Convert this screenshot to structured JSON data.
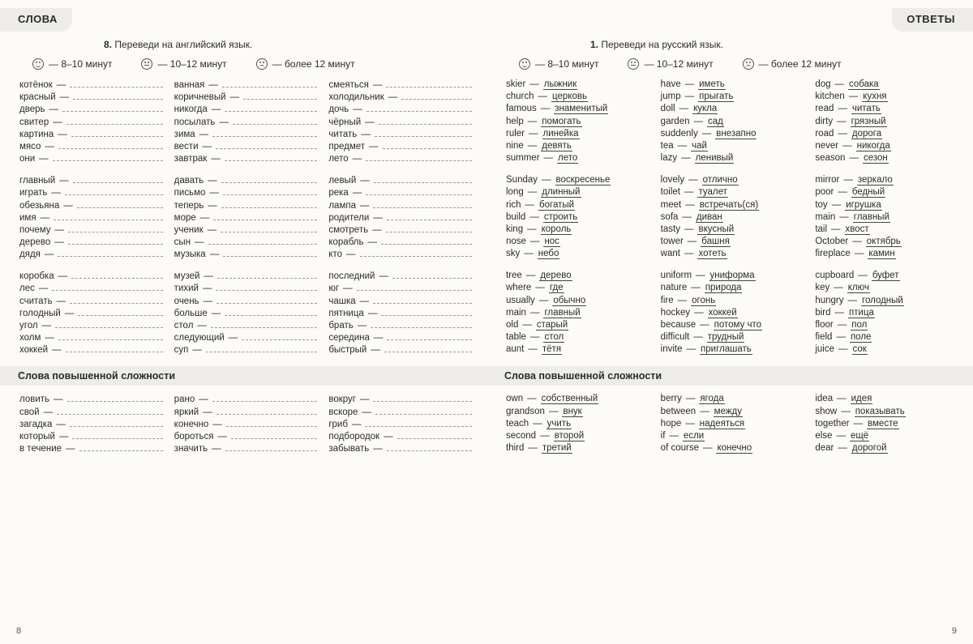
{
  "left": {
    "tab": "СЛОВА",
    "task_num": "8.",
    "task_text": "Переведи на английский язык.",
    "timers": [
      {
        "face": "happy",
        "text": "— 8–10 минут"
      },
      {
        "face": "neutral",
        "text": "— 10–12 минут"
      },
      {
        "face": "sad",
        "text": "— более 12 минут"
      }
    ],
    "groups": [
      [
        [
          "котёнок",
          "красный",
          "дверь",
          "свитер",
          "картина",
          "мясо",
          "они"
        ],
        [
          "ванная",
          "коричневый",
          "никогда",
          "посылать",
          "зима",
          "вести",
          "завтрак"
        ],
        [
          "смеяться",
          "холодильник",
          "дочь",
          "чёрный",
          "читать",
          "предмет",
          "лето"
        ]
      ],
      [
        [
          "главный",
          "играть",
          "обезьяна",
          "имя",
          "почему",
          "дерево",
          "дядя"
        ],
        [
          "давать",
          "письмо",
          "теперь",
          "море",
          "ученик",
          "сын",
          "музыка"
        ],
        [
          "левый",
          "река",
          "лампа",
          "родители",
          "смотреть",
          "корабль",
          "кто"
        ]
      ],
      [
        [
          "коробка",
          "лес",
          "считать",
          "голодный",
          "угол",
          "холм",
          "хоккей"
        ],
        [
          "музей",
          "тихий",
          "очень",
          "больше",
          "стол",
          "следующий",
          "суп"
        ],
        [
          "последний",
          "юг",
          "чашка",
          "пятница",
          "брать",
          "середина",
          "быстрый"
        ]
      ]
    ],
    "hard_title": "Слова повышенной сложности",
    "hard": [
      [
        "ловить",
        "свой",
        "загадка",
        "который",
        "в течение"
      ],
      [
        "рано",
        "яркий",
        "конечно",
        "бороться",
        "значить"
      ],
      [
        "вокруг",
        "вскоре",
        "гриб",
        "подбородок",
        "забывать"
      ]
    ],
    "page_num": "8"
  },
  "right": {
    "tab": "ОТВЕТЫ",
    "task_num": "1.",
    "task_text": "Переведи на русский язык.",
    "timers": [
      {
        "face": "happy",
        "text": "— 8–10 минут"
      },
      {
        "face": "neutral",
        "text": "— 10–12 минут"
      },
      {
        "face": "sad",
        "text": "— более 12 минут"
      }
    ],
    "groups": [
      [
        [
          [
            "skier",
            "лыжник"
          ],
          [
            "church",
            "церковь"
          ],
          [
            "famous",
            "знаменитый"
          ],
          [
            "help",
            "помогать"
          ],
          [
            "ruler",
            "линейка"
          ],
          [
            "nine",
            "девять"
          ],
          [
            "summer",
            "лето"
          ]
        ],
        [
          [
            "have",
            "иметь"
          ],
          [
            "jump",
            "прыгать"
          ],
          [
            "doll",
            "кукла"
          ],
          [
            "garden",
            "сад"
          ],
          [
            "suddenly",
            "внезапно"
          ],
          [
            "tea",
            "чай"
          ],
          [
            "lazy",
            "ленивый"
          ]
        ],
        [
          [
            "dog",
            "собака"
          ],
          [
            "kitchen",
            "кухня"
          ],
          [
            "read",
            "читать"
          ],
          [
            "dirty",
            "грязный"
          ],
          [
            "road",
            "дорога"
          ],
          [
            "never",
            "никогда"
          ],
          [
            "season",
            "сезон"
          ]
        ]
      ],
      [
        [
          [
            "Sunday",
            "воскресенье"
          ],
          [
            "long",
            "длинный"
          ],
          [
            "rich",
            "богатый"
          ],
          [
            "build",
            "строить"
          ],
          [
            "king",
            "король"
          ],
          [
            "nose",
            "нос"
          ],
          [
            "sky",
            "небо"
          ]
        ],
        [
          [
            "lovely",
            "отлично"
          ],
          [
            "toilet",
            "туалет"
          ],
          [
            "meet",
            "встречать(ся)"
          ],
          [
            "sofa",
            "диван"
          ],
          [
            "tasty",
            "вкусный"
          ],
          [
            "tower",
            "башня"
          ],
          [
            "want",
            "хотеть"
          ]
        ],
        [
          [
            "mirror",
            "зеркало"
          ],
          [
            "poor",
            "бедный"
          ],
          [
            "toy",
            "игрушка"
          ],
          [
            "main",
            "главный"
          ],
          [
            "tail",
            "хвост"
          ],
          [
            "October",
            "октябрь"
          ],
          [
            "fireplace",
            "камин"
          ]
        ]
      ],
      [
        [
          [
            "tree",
            "дерево"
          ],
          [
            "where",
            "где"
          ],
          [
            "usually",
            "обычно"
          ],
          [
            "main",
            "главный"
          ],
          [
            "old",
            "старый"
          ],
          [
            "table",
            "стол"
          ],
          [
            "aunt",
            "тётя"
          ]
        ],
        [
          [
            "uniform",
            "униформа"
          ],
          [
            "nature",
            "природа"
          ],
          [
            "fire",
            "огонь"
          ],
          [
            "hockey",
            "хоккей"
          ],
          [
            "because",
            "потому что"
          ],
          [
            "difficult",
            "трудный"
          ],
          [
            "invite",
            "приглашать"
          ]
        ],
        [
          [
            "cupboard",
            "буфет"
          ],
          [
            "key",
            "ключ"
          ],
          [
            "hungry",
            "голодный"
          ],
          [
            "bird",
            "птица"
          ],
          [
            "floor",
            "пол"
          ],
          [
            "field",
            "поле"
          ],
          [
            "juice",
            "сок"
          ]
        ]
      ]
    ],
    "hard_title": "Слова повышенной сложности",
    "hard": [
      [
        [
          "own",
          "собственный"
        ],
        [
          "grandson",
          "внук"
        ],
        [
          "teach",
          "учить"
        ],
        [
          "second",
          "второй"
        ],
        [
          "third",
          "третий"
        ]
      ],
      [
        [
          "berry",
          "ягода"
        ],
        [
          "between",
          "между"
        ],
        [
          "hope",
          "надеяться"
        ],
        [
          "if",
          "если"
        ],
        [
          "of course",
          "конечно"
        ]
      ],
      [
        [
          "idea",
          "идея"
        ],
        [
          "show",
          "показывать"
        ],
        [
          "together",
          "вместе"
        ],
        [
          "else",
          "ещё"
        ],
        [
          "dear",
          "дорогой"
        ]
      ]
    ],
    "page_num": "9"
  }
}
